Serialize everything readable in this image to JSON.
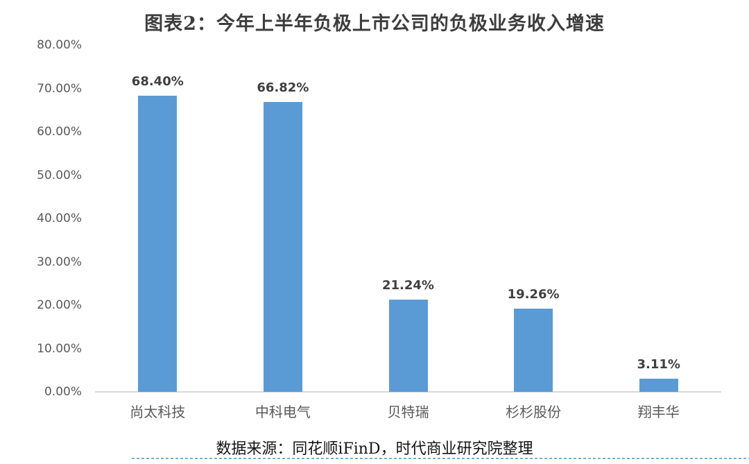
{
  "chart": {
    "title": "图表2：今年上半年负极上市公司的负极业务收入增速"
  },
  "chart_data": {
    "type": "bar",
    "title": "图表2：今年上半年负极上市公司的负极业务收入增速",
    "categories": [
      "尚太科技",
      "中科电气",
      "贝特瑞",
      "杉杉股份",
      "翔丰华"
    ],
    "values": [
      68.4,
      66.82,
      21.24,
      19.26,
      3.11
    ],
    "value_labels": [
      "68.40%",
      "66.82%",
      "21.24%",
      "19.26%",
      "3.11%"
    ],
    "y_ticks": [
      "80.00%",
      "70.00%",
      "60.00%",
      "50.00%",
      "40.00%",
      "30.00%",
      "20.00%",
      "10.00%",
      "0.00%"
    ],
    "y_tick_values": [
      80,
      70,
      60,
      50,
      40,
      30,
      20,
      10,
      0
    ],
    "ylim": [
      0,
      80
    ],
    "grid": false,
    "legend": false,
    "bar_color": "#5B9BD5",
    "axis_line_color": "#D9D9D9",
    "value_label_color": "#3F3F3F",
    "tick_label_color": "#595959"
  },
  "footer": {
    "source_text": "数据来源：同花顺iFinD，时代商业研究院整理",
    "dotted_line_color": "#77ADD6"
  }
}
